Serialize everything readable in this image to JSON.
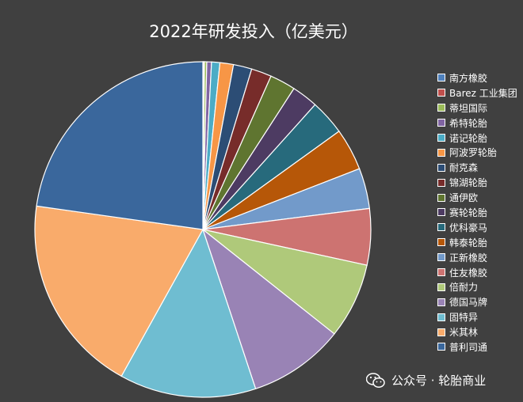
{
  "chart_data": {
    "type": "pie",
    "title": "2022年研发投入（亿美元）",
    "start_angle": "12 o'clock",
    "direction": "clockwise",
    "legend_position": "right",
    "slices": [
      {
        "label": "南方橡胶",
        "value": 0.02,
        "color": "#4F81BD"
      },
      {
        "label": "Barez 工业集团",
        "value": 0.04,
        "color": "#C0504D"
      },
      {
        "label": "蒂坦国际",
        "value": 0.09,
        "color": "#9BBB59"
      },
      {
        "label": "希特轮胎",
        "value": 0.18,
        "color": "#8064A2"
      },
      {
        "label": "诺记轮胎",
        "value": 0.32,
        "color": "#4BACC6"
      },
      {
        "label": "阿波罗轮胎",
        "value": 0.52,
        "color": "#F79646"
      },
      {
        "label": "耐克森",
        "value": 0.71,
        "color": "#2C4D75"
      },
      {
        "label": "锦湖轮胎",
        "value": 0.78,
        "color": "#772C2A"
      },
      {
        "label": "通伊欧",
        "value": 0.99,
        "color": "#5F7530"
      },
      {
        "label": "赛轮轮胎",
        "value": 1.01,
        "color": "#4D3B62"
      },
      {
        "label": "优科豪马",
        "value": 1.36,
        "color": "#276A7C"
      },
      {
        "label": "韩泰轮胎",
        "value": 1.62,
        "color": "#B65708"
      },
      {
        "label": "正新橡胶",
        "value": 1.56,
        "color": "#729ACA"
      },
      {
        "label": "住友橡胶",
        "value": 2.17,
        "color": "#CD7371"
      },
      {
        "label": "倍耐力",
        "value": 2.91,
        "color": "#AFC97A"
      },
      {
        "label": "德国马牌",
        "value": 3.69,
        "color": "#9983B5"
      },
      {
        "label": "固特异",
        "value": 5.26,
        "color": "#6FBDD1"
      },
      {
        "label": "米其林",
        "value": 7.67,
        "color": "#F9AB6B"
      },
      {
        "label": "普利司通",
        "value": 9.11,
        "color": "#3A679C"
      }
    ]
  },
  "watermark": {
    "text": "公众号 · 轮胎商业",
    "icon": "wechat-icon"
  }
}
